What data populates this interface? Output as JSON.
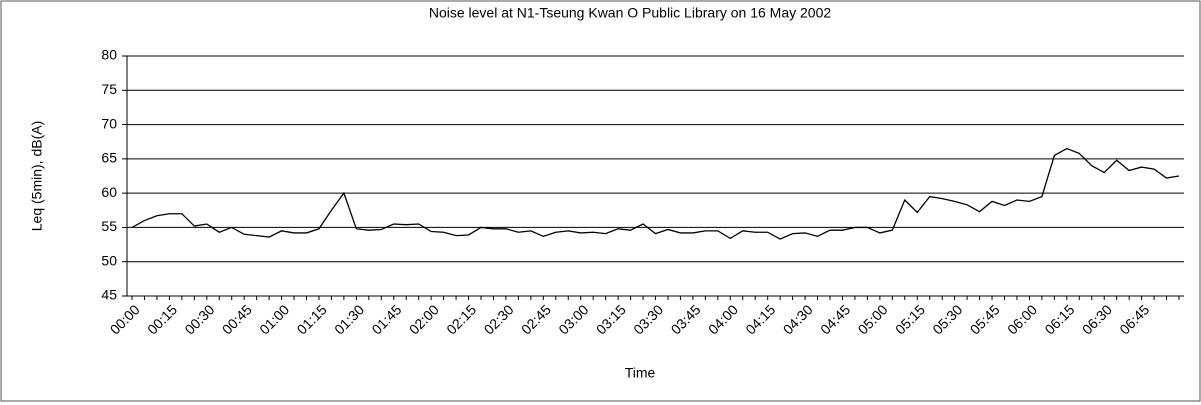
{
  "chart_data": {
    "type": "line",
    "title": "Noise level at  N1-Tseung Kwan O Public Library on 16 May 2002",
    "x_label": "Time",
    "y_label": "Leq (5min), dB(A)",
    "categories": [
      "00:00",
      null,
      null,
      "00:15",
      null,
      null,
      "00:30",
      null,
      null,
      "00:45",
      null,
      null,
      "01:00",
      null,
      null,
      "01:15",
      null,
      null,
      "01:30",
      null,
      null,
      "01:45",
      null,
      null,
      "02:00",
      null,
      null,
      "02:15",
      null,
      null,
      "02:30",
      null,
      null,
      "02:45",
      null,
      null,
      "03:00",
      null,
      null,
      "03:15",
      null,
      null,
      "03:30",
      null,
      null,
      "03:45",
      null,
      null,
      "04:00",
      null,
      null,
      "04:15",
      null,
      null,
      "04:30",
      null,
      null,
      "04:45",
      null,
      null,
      "05:00",
      null,
      null,
      "05:15",
      null,
      null,
      "05:30",
      null,
      null,
      "05:45",
      null,
      null,
      "06:00",
      null,
      null,
      "06:15",
      null,
      null,
      "06:30",
      null,
      null,
      "06:45",
      null,
      null,
      null
    ],
    "series": [
      {
        "name": "Leq",
        "color": "#000000",
        "values": [
          55,
          56,
          56.7,
          57,
          57,
          55.2,
          55.5,
          54.3,
          55,
          54,
          53.8,
          53.6,
          54.5,
          54.2,
          54.2,
          54.8,
          57.5,
          60,
          54.8,
          54.6,
          54.7,
          55.5,
          55.4,
          55.5,
          54.4,
          54.3,
          53.8,
          53.9,
          55,
          54.8,
          54.8,
          54.3,
          54.5,
          53.7,
          54.3,
          54.5,
          54.2,
          54.3,
          54.1,
          54.8,
          54.6,
          55.5,
          54.1,
          54.7,
          54.2,
          54.2,
          54.5,
          54.5,
          53.4,
          54.5,
          54.3,
          54.3,
          53.3,
          54.1,
          54.2,
          53.7,
          54.6,
          54.6,
          55,
          55,
          54.2,
          54.6,
          59,
          57.2,
          59.5,
          59.2,
          58.8,
          58.3,
          57.3,
          58.8,
          58.2,
          59,
          58.8,
          59.5,
          65.5,
          66.5,
          65.8,
          64,
          63,
          64.8,
          63.3,
          63.8,
          63.5,
          62.2,
          62.5
        ]
      }
    ],
    "ylim": [
      45,
      80
    ],
    "yticks": [
      45,
      50,
      55,
      60,
      65,
      70,
      75,
      80
    ],
    "grid": true
  }
}
